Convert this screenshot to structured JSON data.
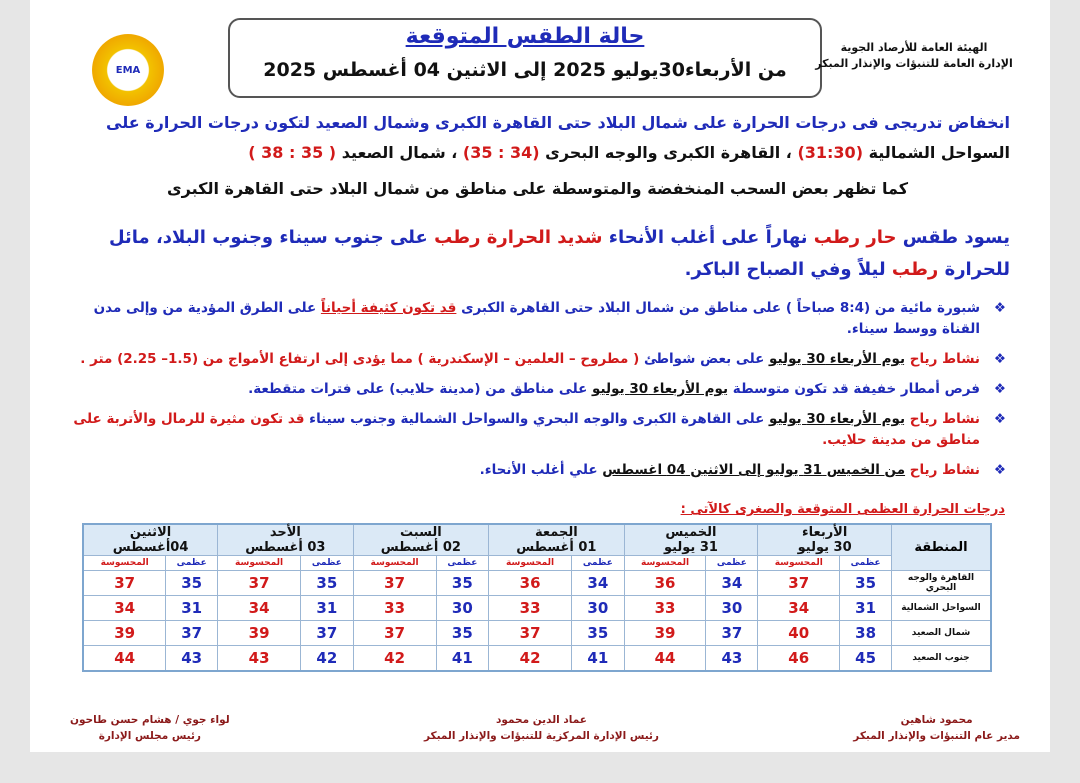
{
  "header": {
    "logo_text": "EMA",
    "title": "حالة الطقس المتوقعة",
    "date_range": "من الأربعاء30يوليو 2025 إلى الاثنين 04 أغسطس 2025",
    "org": [
      "الهيئة العامة للأرصاد الجوية",
      "الإدارة العامة للتنبؤات والإنذار المبكر"
    ]
  },
  "summary": [
    {
      "segments": [
        {
          "text": "انخفاض تدريجى فى درجات الحرارة على شمال البلاد حتى القاهرة الكبرى وشمال الصعيد لتكون درجات الحرارة على ",
          "color": "#1f2bb8"
        },
        {
          "text": "السواحل الشمالية ",
          "color": "#111111"
        },
        {
          "text": "(31:30)",
          "color": "#d11a1a"
        },
        {
          "text": " ، القاهرة الكبرى والوجه البحرى ",
          "color": "#111111"
        },
        {
          "text": "(34 : 35)",
          "color": "#d11a1a"
        },
        {
          "text": " ، شمال الصعيد ",
          "color": "#111111"
        },
        {
          "text": "( 35 : 38 )",
          "color": "#d11a1a"
        }
      ]
    },
    {
      "segments": [
        {
          "text": "كما تظهر بعض السحب المنخفضة والمتوسطة على مناطق من شمال البلاد حتى القاهرة الكبرى",
          "color": "#111111"
        }
      ]
    }
  ],
  "weather": {
    "segments": [
      {
        "text": "يسود طقس ",
        "color": "#1f2bb8"
      },
      {
        "text": "حار رطب",
        "color": "#d11a1a"
      },
      {
        "text": " نهاراً على أغلب الأنحاء ",
        "color": "#1f2bb8"
      },
      {
        "text": "شديد الحرارة رطب",
        "color": "#d11a1a"
      },
      {
        "text": " على جنوب سيناء وجنوب البلاد، مائل للحرارة ",
        "color": "#1f2bb8"
      },
      {
        "text": "رطب",
        "color": "#d11a1a"
      },
      {
        "text": " ليلاً وفي الصباح الباكر.",
        "color": "#1f2bb8"
      }
    ]
  },
  "bullets": [
    {
      "segments": [
        {
          "text": "شبورة مائية من (8:4 صباحاً ) على مناطق من شمال البلاد حتى القاهرة الكبرى ",
          "color": "#1f2bb8"
        },
        {
          "text": "قد تكون كثيفة أحياناً",
          "color": "#d11a1a",
          "underline": true
        },
        {
          "text": " على الطرق المؤدية من وإلى مدن القناة ووسط سيناء.",
          "color": "#1f2bb8"
        }
      ]
    },
    {
      "segments": [
        {
          "text": "نشاط رياح ",
          "color": "#d11a1a"
        },
        {
          "text": "يوم الأربعاء 30 يوليو",
          "color": "#111111",
          "underline": true
        },
        {
          "text": " على بعض شواطئ ",
          "color": "#1f2bb8"
        },
        {
          "text": "( مطروح – العلمين – الإسكندرية ) مما يؤدى إلى ارتفاع الأمواج  من (1.5– 2.25) متر .",
          "color": "#d11a1a"
        }
      ]
    },
    {
      "segments": [
        {
          "text": "فرص أمطار خفيفة قد تكون متوسطة ",
          "color": "#1f2bb8"
        },
        {
          "text": "يوم الأربعاء 30 يوليو",
          "color": "#111111",
          "underline": true
        },
        {
          "text": " على مناطق من (مدينة حلايب) على فترات متقطعة.",
          "color": "#1f2bb8"
        }
      ]
    },
    {
      "segments": [
        {
          "text": "نشاط رياح ",
          "color": "#d11a1a"
        },
        {
          "text": "يوم الأربعاء 30 يوليو",
          "color": "#111111",
          "underline": true
        },
        {
          "text": " على القاهرة الكبرى والوجه البحري والسواحل الشمالية وجنوب سيناء ",
          "color": "#1f2bb8"
        },
        {
          "text": "قد تكون مثيرة للرمال والأتربة على مناطق من مدينة حلايب.",
          "color": "#d11a1a"
        }
      ]
    },
    {
      "segments": [
        {
          "text": "نشاط رياح ",
          "color": "#d11a1a"
        },
        {
          "text": "من الخميس 31 يوليو إلى الاثنين 04 اغسطس",
          "color": "#111111",
          "underline": true
        },
        {
          "text": " علي أغلب الأنحاء.",
          "color": "#1f2bb8"
        }
      ]
    }
  ],
  "table": {
    "caption": "درجات الحرارة العظمى المتوقعة والصغرى كالآتى :",
    "region_header": "المنطقة",
    "days": [
      [
        "الأربعاء",
        "30 يوليو"
      ],
      [
        "الخميس",
        "31 يوليو"
      ],
      [
        "الجمعة",
        "01 أغسطس"
      ],
      [
        "السبت",
        "02 أغسطس"
      ],
      [
        "الأحد",
        "03 أغسطس"
      ],
      [
        "الاثنين",
        "04أغسطس"
      ]
    ],
    "subheaders": [
      "عظمى",
      "المحسوسة"
    ],
    "rows": [
      {
        "region": "القاهرة والوجه البحري",
        "values": [
          35,
          37,
          34,
          36,
          34,
          36,
          35,
          37,
          35,
          37,
          35,
          37
        ]
      },
      {
        "region": "السواحل الشمالية",
        "values": [
          31,
          34,
          30,
          33,
          30,
          33,
          30,
          33,
          31,
          34,
          31,
          34
        ]
      },
      {
        "region": "شمال الصعيد",
        "values": [
          38,
          40,
          37,
          39,
          35,
          37,
          35,
          37,
          37,
          39,
          37,
          39
        ]
      },
      {
        "region": "جنوب الصعيد",
        "values": [
          45,
          46,
          43,
          44,
          41,
          42,
          41,
          42,
          42,
          43,
          43,
          44
        ]
      }
    ]
  },
  "signatures": [
    [
      "محمود شاهين",
      "مدير عام التنبؤات والإنذار المبكر"
    ],
    [
      "عماد الدين محمود",
      "رئيس الإدارة المركزية للتنبؤات والإنذار المبكر"
    ],
    [
      "لواء جوي / هشام حسن طاحون",
      "رئيس مجلس الإدارة"
    ]
  ]
}
